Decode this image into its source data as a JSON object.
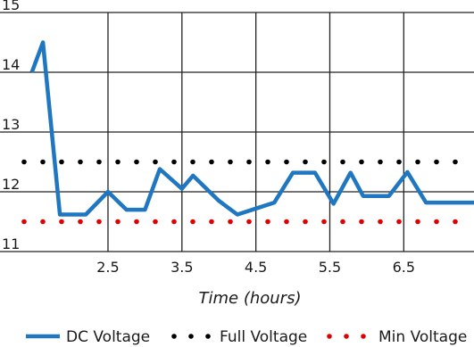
{
  "chart_data": {
    "type": "line",
    "xlabel": "Time (hours)",
    "ylabel": "",
    "xlim": [
      1.45,
      7.45
    ],
    "ylim": [
      11,
      15
    ],
    "x_ticks": [
      2.5,
      3.5,
      4.5,
      5.5,
      6.5
    ],
    "x_tick_labels": [
      "2.5",
      "3.5",
      "4.5",
      "5.5",
      "6.5"
    ],
    "y_ticks": [
      11,
      12,
      13,
      14,
      15
    ],
    "y_tick_labels": [
      "11",
      "12",
      "13",
      "14",
      "15"
    ],
    "grid": true,
    "legend_position": "bottom",
    "series": [
      {
        "name": "DC Voltage",
        "style": "line",
        "color": "#1f77c1",
        "x": [
          1.47,
          1.62,
          1.85,
          2.2,
          2.5,
          2.75,
          3.0,
          3.2,
          3.5,
          3.65,
          4.0,
          4.25,
          4.5,
          4.75,
          5.0,
          5.3,
          5.55,
          5.78,
          5.95,
          6.3,
          6.55,
          6.8,
          7.0,
          7.45
        ],
        "y": [
          14.0,
          14.5,
          11.62,
          11.62,
          12.0,
          11.7,
          11.7,
          12.38,
          12.05,
          12.27,
          11.85,
          11.62,
          11.72,
          11.82,
          12.32,
          12.32,
          11.8,
          12.32,
          11.93,
          11.93,
          12.33,
          11.82,
          11.82,
          11.82
        ]
      },
      {
        "name": "Full Voltage",
        "style": "dotted",
        "color": "#000000",
        "value": 12.5
      },
      {
        "name": "Min Voltage",
        "style": "dotted",
        "color": "#e00000",
        "value": 11.5
      }
    ]
  }
}
